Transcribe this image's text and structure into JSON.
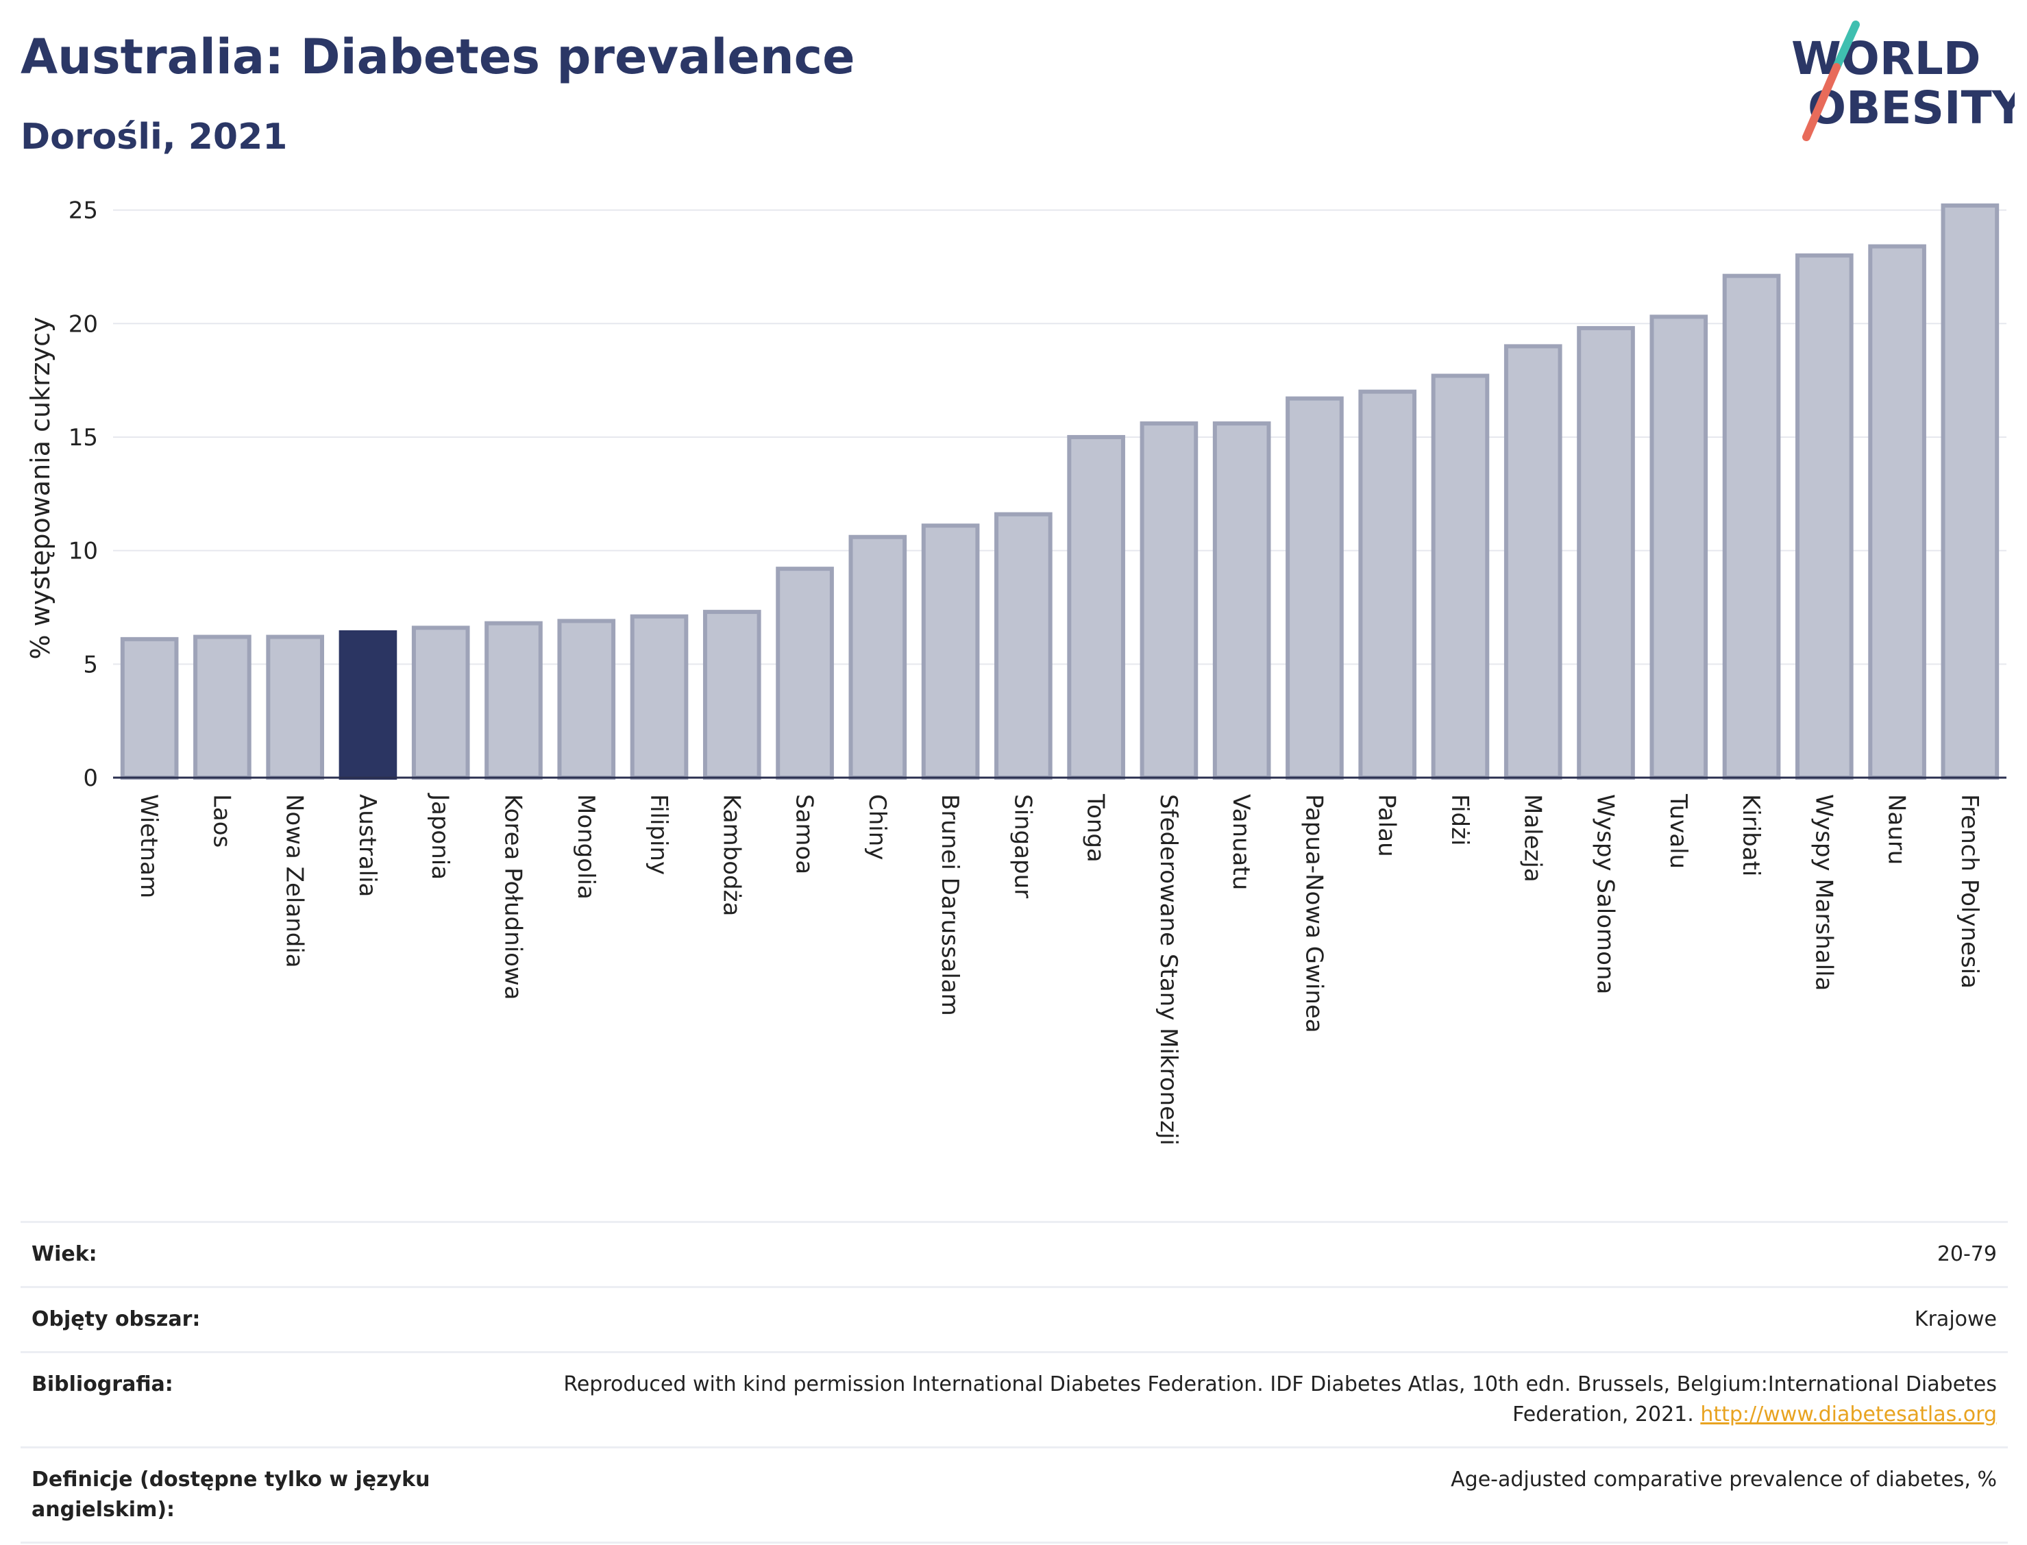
{
  "header": {
    "title": "Australia: Diabetes prevalence",
    "subtitle": "Dorośli, 2021",
    "logo_line1": "WORLD",
    "logo_line2": "OBESITY"
  },
  "colors": {
    "bar": "#bfc3d1",
    "bar_border": "#9ea3b8",
    "highlight": "#2b3562",
    "title": "#2b3766",
    "link": "#e8a320"
  },
  "chart_data": {
    "type": "bar",
    "ylabel": "% występowania cukrzycy",
    "xlabel": "",
    "ylim": [
      0,
      25.5
    ],
    "yticks": [
      0,
      5,
      10,
      15,
      20,
      25
    ],
    "grid": true,
    "highlight": "Australia",
    "categories": [
      "Wietnam",
      "Laos",
      "Nowa Zelandia",
      "Australia",
      "Japonia",
      "Korea Południowa",
      "Mongolia",
      "Filipiny",
      "Kambodża",
      "Samoa",
      "Chiny",
      "Brunei Darussalam",
      "Singapur",
      "Tonga",
      "Sfederowane Stany Mikronezji",
      "Vanuatu",
      "Papua-Nowa Gwinea",
      "Palau",
      "Fidżi",
      "Malezja",
      "Wyspy Salomona",
      "Tuvalu",
      "Kiribati",
      "Wyspy Marshalla",
      "Nauru",
      "French Polynesia"
    ],
    "values": [
      6.1,
      6.2,
      6.2,
      6.4,
      6.6,
      6.8,
      6.9,
      7.1,
      7.3,
      9.2,
      10.6,
      11.1,
      11.6,
      15.0,
      15.6,
      15.6,
      16.7,
      17.0,
      17.7,
      19.0,
      19.8,
      20.3,
      22.1,
      23.0,
      23.4,
      25.2
    ]
  },
  "meta": [
    {
      "label": "Wiek:",
      "value": "20-79"
    },
    {
      "label": "Objęty obszar:",
      "value": "Krajowe"
    },
    {
      "label": "Bibliografia:",
      "value": "Reproduced with kind permission International Diabetes Federation.  IDF Diabetes Atlas, 10th edn. Brussels, Belgium:International Diabetes Federation, 2021.",
      "link": "http://www.diabetesatlas.org"
    },
    {
      "label": "Definicje (dostępne tylko w języku angielskim):",
      "value": "Age-adjusted comparative prevalence of diabetes, %"
    }
  ]
}
